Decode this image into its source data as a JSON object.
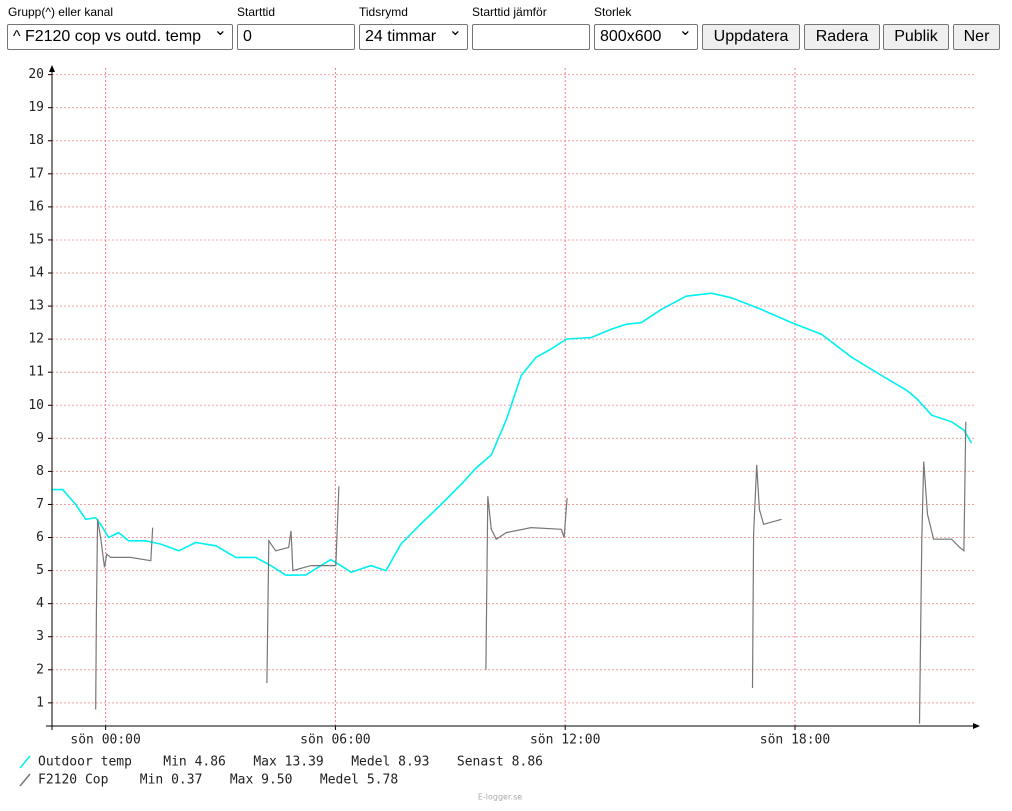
{
  "form": {
    "labels": [
      "Grupp(^) eller kanal",
      "Starttid",
      "Tidsrymd",
      "Starttid jämför",
      "Storlek"
    ],
    "group_select": "^ F2120 cop vs outd. temp",
    "start_input": "0",
    "span_select": "24 timmar",
    "size_select": "800x600",
    "buttons": [
      "Uppdatera",
      "Radera",
      "Publik",
      "Ner"
    ]
  },
  "chart_data": {
    "type": "line",
    "xlim": [
      -1.4,
      22.7
    ],
    "ylim": [
      0.3,
      20.2
    ],
    "xticks": [
      {
        "value": 0,
        "label": "sön 00:00"
      },
      {
        "value": 6,
        "label": "sön 06:00"
      },
      {
        "value": 12,
        "label": "sön 12:00"
      },
      {
        "value": 18,
        "label": "sön 18:00"
      }
    ],
    "yticks": [
      1,
      2,
      3,
      4,
      5,
      6,
      7,
      8,
      9,
      10,
      11,
      12,
      13,
      14,
      15,
      16,
      17,
      18,
      19,
      20
    ],
    "grid": true,
    "series": [
      {
        "name": "Outdoor temp",
        "color": "#00f0f0",
        "stats": [
          "Min 4.86",
          "Max 13.39",
          "Medel 8.93",
          "Senast 8.86"
        ],
        "x": [
          -1.39,
          -1.12,
          -0.78,
          -0.52,
          -0.26,
          -0.13,
          0.08,
          0.34,
          0.6,
          1.05,
          1.44,
          1.91,
          2.35,
          2.88,
          3.4,
          3.92,
          4.31,
          4.71,
          5.23,
          5.62,
          5.88,
          6.14,
          6.41,
          6.93,
          7.32,
          7.71,
          8.24,
          8.76,
          9.28,
          9.67,
          10.07,
          10.46,
          10.85,
          11.24,
          11.63,
          12.03,
          12.68,
          13.2,
          13.59,
          13.99,
          14.51,
          15.16,
          15.82,
          16.34,
          17.12,
          17.91,
          18.69,
          19.48,
          20.26,
          20.92,
          21.18,
          21.57,
          22.09,
          22.41,
          22.61
        ],
        "values": [
          7.45,
          7.45,
          7.0,
          6.55,
          6.6,
          6.4,
          6.0,
          6.15,
          5.9,
          5.9,
          5.8,
          5.6,
          5.85,
          5.75,
          5.4,
          5.4,
          5.15,
          4.86,
          4.87,
          5.15,
          5.33,
          5.15,
          4.95,
          5.15,
          5.0,
          5.8,
          6.42,
          7.0,
          7.6,
          8.1,
          8.5,
          9.55,
          10.9,
          11.45,
          11.7,
          12.0,
          12.05,
          12.3,
          12.45,
          12.5,
          12.9,
          13.3,
          13.39,
          13.25,
          12.9,
          12.5,
          12.15,
          11.45,
          10.9,
          10.45,
          10.2,
          9.7,
          9.5,
          9.25,
          8.86
        ]
      },
      {
        "name": "F2120 Cop",
        "color": "#777777",
        "stats": [
          "Min 0.37",
          "Max 9.50",
          "Medel 5.78"
        ],
        "x": [
          -0.26,
          -0.24,
          -0.21,
          -0.13,
          -0.03,
          0.03,
          0.13,
          0.65,
          1.18,
          1.23,
          null,
          4.21,
          4.26,
          4.44,
          4.78,
          4.84,
          4.89,
          5.36,
          6.01,
          6.09,
          null,
          9.93,
          9.98,
          10.07,
          10.2,
          10.46,
          11.11,
          11.9,
          11.97,
          12.05,
          null,
          16.89,
          16.92,
          17.0,
          17.07,
          17.18,
          17.65,
          null,
          21.25,
          21.31,
          21.36,
          21.46,
          21.62,
          22.09,
          22.3,
          22.41,
          22.46
        ],
        "values": [
          0.8,
          3.75,
          6.55,
          6.0,
          5.1,
          5.5,
          5.4,
          5.4,
          5.3,
          6.3,
          null,
          1.6,
          5.9,
          5.6,
          5.7,
          6.2,
          5.0,
          5.15,
          5.15,
          7.55,
          null,
          2.0,
          7.25,
          6.25,
          5.95,
          6.15,
          6.3,
          6.25,
          6.0,
          7.2,
          null,
          1.45,
          6.1,
          8.2,
          6.85,
          6.4,
          6.55,
          null,
          0.37,
          5.95,
          8.3,
          6.7,
          5.95,
          5.95,
          5.7,
          5.6,
          9.5
        ]
      }
    ]
  },
  "footer": "E-logger.se"
}
